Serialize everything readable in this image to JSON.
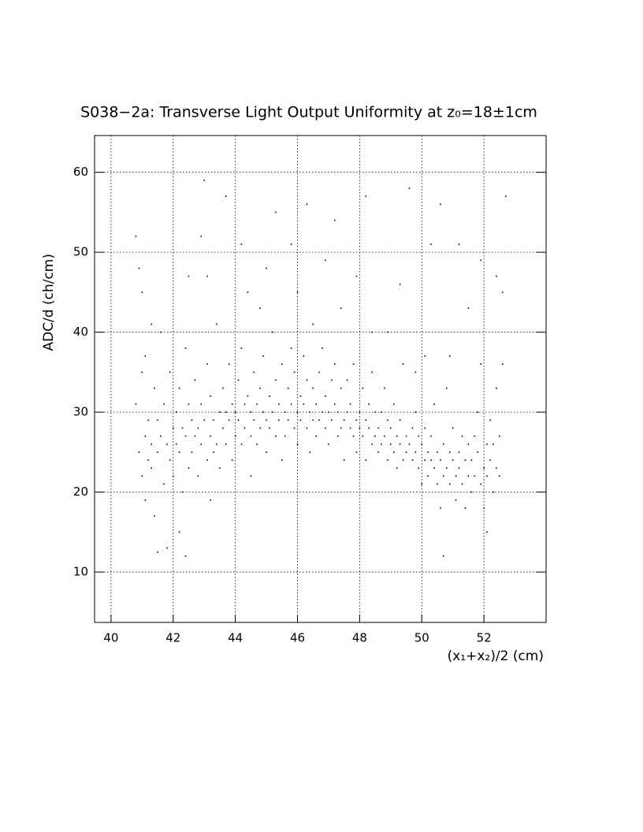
{
  "chart_data": {
    "type": "scatter",
    "title": "S038−2a: Transverse Light Output Uniformity at z₀=18±1cm",
    "xlabel": "(x₁+x₂)/2 (cm)",
    "ylabel": "ADC/d (ch/cm)",
    "color": "#000000",
    "grid": true,
    "xlim": [
      39.47,
      54.0
    ],
    "ylim": [
      3.7,
      64.6
    ],
    "xticks": [
      40,
      42,
      44,
      46,
      48,
      50,
      52
    ],
    "yticks": [
      10,
      20,
      30,
      40,
      50,
      60
    ],
    "x": [
      40.8,
      40.9,
      40.9,
      41.0,
      41.0,
      41.1,
      41.1,
      41.2,
      41.2,
      41.3,
      41.3,
      41.4,
      41.4,
      41.5,
      41.5,
      40.8,
      41.1,
      41.3,
      41.5,
      41.0,
      41.6,
      41.7,
      41.7,
      41.8,
      41.8,
      41.9,
      41.9,
      42.0,
      42.0,
      42.1,
      42.1,
      42.2,
      42.2,
      42.3,
      42.3,
      42.4,
      42.4,
      42.5,
      42.5,
      42.5,
      41.6,
      42.2,
      42.4,
      42.6,
      42.6,
      42.7,
      42.7,
      42.8,
      42.8,
      42.9,
      42.9,
      43.0,
      43.0,
      43.1,
      43.1,
      43.2,
      43.2,
      43.3,
      43.3,
      43.4,
      43.4,
      43.5,
      43.5,
      43.1,
      42.9,
      43.2,
      43.6,
      43.6,
      43.7,
      43.7,
      43.8,
      43.8,
      43.9,
      43.9,
      44.0,
      44.0,
      44.1,
      44.1,
      44.2,
      44.2,
      44.3,
      44.3,
      44.4,
      44.4,
      44.5,
      44.5,
      43.7,
      44.2,
      44.5,
      44.6,
      44.6,
      44.7,
      44.7,
      44.8,
      44.8,
      44.9,
      44.9,
      45.0,
      45.0,
      45.1,
      45.1,
      45.2,
      45.2,
      45.3,
      45.3,
      45.4,
      45.4,
      45.5,
      45.5,
      45.0,
      45.3,
      44.8,
      45.6,
      45.6,
      45.7,
      45.7,
      45.8,
      45.8,
      45.9,
      45.9,
      46.0,
      46.0,
      46.1,
      46.1,
      46.2,
      46.2,
      46.3,
      46.3,
      46.4,
      46.4,
      46.5,
      46.5,
      46.0,
      46.3,
      45.8,
      46.5,
      46.6,
      46.6,
      46.7,
      46.7,
      46.8,
      46.8,
      46.9,
      46.9,
      47.0,
      47.0,
      47.1,
      47.1,
      47.2,
      47.2,
      47.3,
      47.3,
      47.4,
      47.4,
      47.5,
      47.5,
      47.2,
      46.9,
      47.4,
      47.6,
      47.6,
      47.7,
      47.7,
      47.8,
      47.8,
      47.9,
      47.9,
      48.0,
      48.0,
      48.1,
      48.1,
      48.2,
      48.2,
      48.3,
      48.3,
      48.4,
      48.4,
      48.5,
      48.5,
      48.2,
      47.9,
      48.4,
      48.6,
      48.6,
      48.7,
      48.7,
      48.8,
      48.8,
      48.9,
      48.9,
      49.0,
      49.0,
      49.1,
      49.1,
      49.2,
      49.2,
      49.3,
      49.3,
      49.4,
      49.4,
      49.5,
      49.5,
      49.3,
      49.6,
      48.9,
      49.6,
      49.7,
      49.7,
      49.8,
      49.8,
      49.9,
      49.9,
      50.0,
      50.0,
      50.1,
      50.1,
      50.2,
      50.2,
      50.3,
      50.3,
      50.4,
      50.4,
      50.5,
      50.5,
      50.1,
      50.3,
      49.8,
      50.6,
      50.6,
      50.7,
      50.7,
      50.8,
      50.8,
      50.9,
      50.9,
      51.0,
      51.0,
      51.1,
      51.1,
      51.2,
      51.2,
      51.3,
      51.3,
      51.4,
      51.4,
      51.5,
      51.5,
      50.7,
      50.6,
      51.2,
      51.5,
      50.9,
      51.6,
      51.6,
      51.7,
      51.7,
      51.8,
      51.8,
      51.9,
      51.9,
      52.0,
      52.0,
      52.1,
      52.1,
      52.2,
      52.2,
      52.3,
      52.3,
      52.4,
      52.4,
      52.5,
      52.5,
      52.6,
      52.6,
      52.7,
      52.4,
      51.9,
      52.1
    ],
    "values": [
      31,
      25,
      48,
      22,
      35,
      27,
      19,
      29,
      24,
      41,
      26,
      17,
      33,
      25,
      12.5,
      52,
      37,
      23,
      29,
      45,
      27,
      21,
      31,
      26,
      13,
      24,
      35,
      28,
      22,
      30,
      26,
      25,
      33,
      20,
      28,
      27,
      38,
      23,
      31,
      47,
      40,
      15,
      12,
      29,
      25,
      27,
      34,
      22,
      28,
      31,
      26,
      59,
      29,
      24,
      36,
      27,
      32,
      25,
      29,
      41,
      26,
      30,
      23,
      47,
      52,
      19,
      28,
      33,
      26,
      30,
      36,
      29,
      24,
      31,
      30,
      27,
      34,
      29,
      38,
      26,
      31,
      28,
      45,
      32,
      27,
      30,
      57,
      51,
      22,
      29,
      35,
      31,
      26,
      33,
      28,
      30,
      37,
      29,
      25,
      32,
      28,
      40,
      30,
      27,
      34,
      31,
      29,
      36,
      24,
      48,
      55,
      43,
      30,
      27,
      33,
      29,
      38,
      31,
      28,
      35,
      30,
      26,
      32,
      29,
      37,
      31,
      28,
      34,
      30,
      25,
      33,
      29,
      45,
      56,
      51,
      41,
      31,
      27,
      35,
      29,
      30,
      38,
      28,
      32,
      30,
      26,
      34,
      29,
      31,
      36,
      27,
      30,
      33,
      28,
      29,
      24,
      54,
      49,
      43,
      30,
      34,
      28,
      31,
      27,
      36,
      29,
      25,
      30,
      28,
      33,
      27,
      29,
      24,
      31,
      28,
      26,
      35,
      27,
      30,
      57,
      47,
      40,
      28,
      25,
      30,
      26,
      27,
      33,
      24,
      29,
      26,
      28,
      31,
      25,
      27,
      23,
      29,
      26,
      24,
      36,
      27,
      25,
      46,
      58,
      40,
      26,
      24,
      28,
      25,
      30,
      23,
      27,
      26,
      21,
      24,
      28,
      25,
      22,
      27,
      24,
      23,
      31,
      25,
      21,
      37,
      51,
      35,
      24,
      18,
      26,
      22,
      23,
      33,
      25,
      21,
      24,
      28,
      22,
      19,
      25,
      23,
      27,
      21,
      24,
      18,
      26,
      22,
      12,
      56,
      51,
      43,
      37,
      24,
      20,
      27,
      22,
      25,
      30,
      21,
      36,
      23,
      18,
      26,
      22,
      24,
      29,
      20,
      26,
      23,
      33,
      22,
      27,
      36,
      45,
      57,
      47,
      49,
      15
    ]
  }
}
